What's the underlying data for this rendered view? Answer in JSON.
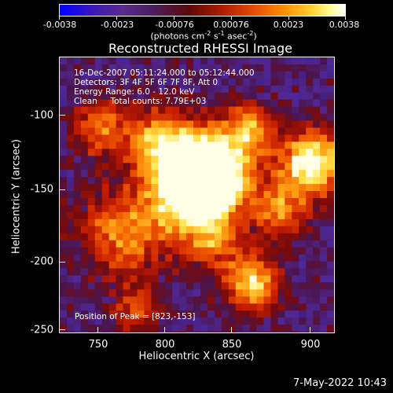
{
  "colorbar": {
    "ticks": [
      "-0.0038",
      "-0.0023",
      "-0.00076",
      "0.00076",
      "0.0023",
      "0.0038"
    ],
    "units_prefix": "(photons cm",
    "units_exp1": "-2",
    "units_mid1": " s",
    "units_exp2": "-1",
    "units_mid2": " asec",
    "units_exp3": "-2",
    "units_suffix": ")"
  },
  "title": "Reconstructed RHESSI Image",
  "info": {
    "line1": "16-Dec-2007 05:11:24.000 to 05:12:44.000",
    "line2": "Detectors: 3F 4F 5F 6F 7F 8F, Att 0",
    "line3": "Energy Range: 6.0 - 12.0 keV",
    "line4": "Clean     Total counts: 7.79E+03"
  },
  "peak": "Position of Peak = [823,-153]",
  "axes": {
    "xlabel": "Heliocentric X (arcsec)",
    "ylabel": "Heliocentric Y (arcsec)",
    "xticks": [
      "750",
      "800",
      "850",
      "900"
    ],
    "yticks": [
      "-100",
      "-150",
      "-200",
      "-250"
    ]
  },
  "timestamp": "7-May-2022 10:43"
}
